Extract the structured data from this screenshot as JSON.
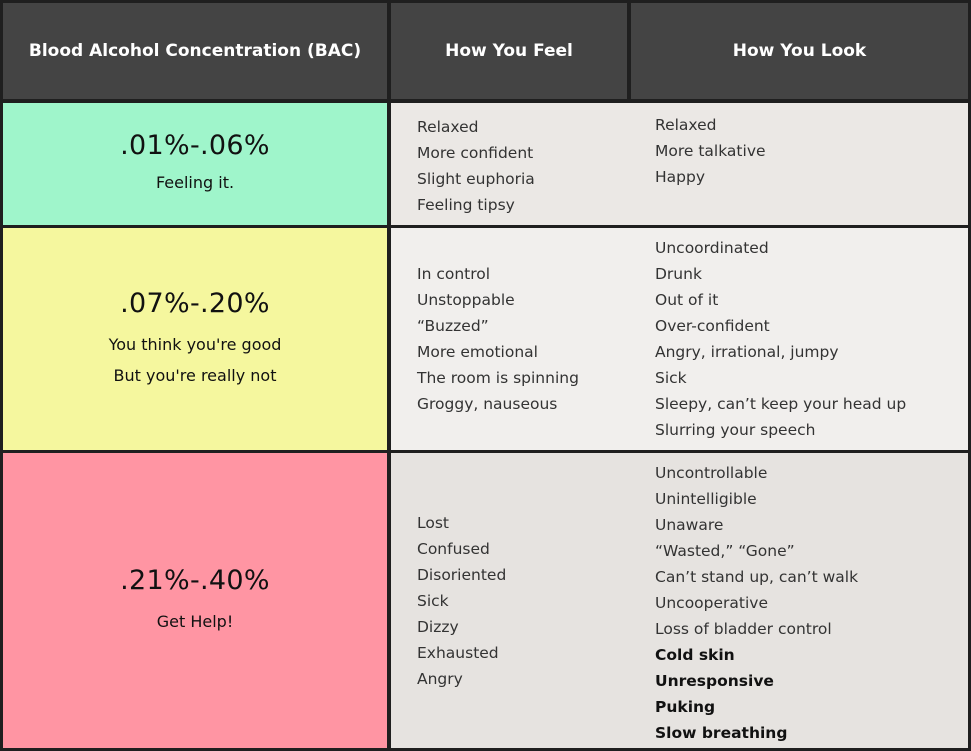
{
  "header": {
    "bac": "Blood Alcohol Concentration (BAC)",
    "feel": "How You Feel",
    "look": "How You Look"
  },
  "colors": {
    "header_bg": "#444444",
    "row1": "#9ff5cb",
    "row2": "#f5f79e",
    "row3": "#ff95a3"
  },
  "rows": [
    {
      "range": ".01%-.06%",
      "tagline": [
        "Feeling it."
      ],
      "feel": [
        "Relaxed",
        "More confident",
        "Slight euphoria",
        "Feeling tipsy"
      ],
      "look": [
        "Relaxed",
        "More talkative",
        "Happy"
      ],
      "look_bold": []
    },
    {
      "range": ".07%-.20%",
      "tagline": [
        "You think you're good",
        "But you're really not"
      ],
      "feel": [
        "In control",
        "Unstoppable",
        "“Buzzed”",
        "More emotional",
        "The room is spinning",
        "Groggy, nauseous"
      ],
      "look": [
        "Uncoordinated",
        "Drunk",
        "Out of it",
        "Over-confident",
        "Angry, irrational, jumpy",
        "Sick",
        "Sleepy, can’t keep your head up",
        "Slurring your speech"
      ],
      "look_bold": []
    },
    {
      "range": ".21%-.40%",
      "tagline": [
        "Get Help!"
      ],
      "feel": [
        "Lost",
        "Confused",
        "Disoriented",
        "Sick",
        "Dizzy",
        "Exhausted",
        "Angry"
      ],
      "look": [
        "Uncontrollable",
        "Unintelligible",
        "Unaware",
        "“Wasted,” “Gone”",
        "Can’t stand up, can’t walk",
        "Uncooperative",
        "Loss of bladder control"
      ],
      "look_bold": [
        "Cold skin",
        "Unresponsive",
        "Puking",
        "Slow breathing"
      ]
    }
  ]
}
